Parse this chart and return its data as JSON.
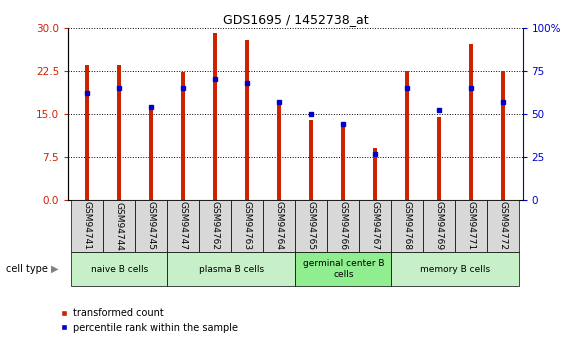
{
  "title": "GDS1695 / 1452738_at",
  "samples": [
    "GSM94741",
    "GSM94744",
    "GSM94745",
    "GSM94747",
    "GSM94762",
    "GSM94763",
    "GSM94764",
    "GSM94765",
    "GSM94766",
    "GSM94767",
    "GSM94768",
    "GSM94769",
    "GSM94771",
    "GSM94772"
  ],
  "transformed_count": [
    23.5,
    23.5,
    15.8,
    22.2,
    29.0,
    27.8,
    17.2,
    13.9,
    12.8,
    9.0,
    22.5,
    14.5,
    27.2,
    22.5
  ],
  "percentile_rank": [
    62,
    65,
    54,
    65,
    70,
    68,
    57,
    50,
    44,
    27,
    65,
    52,
    65,
    57
  ],
  "cell_groups": [
    {
      "label": "naive B cells",
      "start": 0,
      "end": 3,
      "color": "#c8f0c8"
    },
    {
      "label": "plasma B cells",
      "start": 3,
      "end": 7,
      "color": "#c8f0c8"
    },
    {
      "label": "germinal center B\ncells",
      "start": 7,
      "end": 10,
      "color": "#90ee90"
    },
    {
      "label": "memory B cells",
      "start": 10,
      "end": 14,
      "color": "#c8f0c8"
    }
  ],
  "bar_color": "#cc2200",
  "dot_color": "#0000cc",
  "ylim_left": [
    0,
    30
  ],
  "ylim_right": [
    0,
    100
  ],
  "yticks_left": [
    0,
    7.5,
    15,
    22.5,
    30
  ],
  "yticks_right": [
    0,
    25,
    50,
    75,
    100
  ],
  "yticklabels_right": [
    "0",
    "25",
    "50",
    "75",
    "100%"
  ],
  "grid_color": "#888888",
  "plot_bg": "#ffffff",
  "bar_width": 0.12,
  "legend_items": [
    "transformed count",
    "percentile rank within the sample"
  ]
}
